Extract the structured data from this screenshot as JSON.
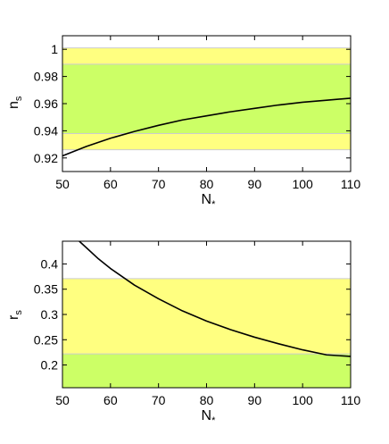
{
  "colors": {
    "outer_band": "#ffff80",
    "inner_band": "#ccff66",
    "curve": "#000000"
  },
  "chart_data": [
    {
      "type": "line",
      "xlabel": "N",
      "xlabel_sub": "*",
      "ylabel": "n",
      "ylabel_sub": "s",
      "xlim": [
        50,
        110
      ],
      "ylim": [
        0.91,
        1.01
      ],
      "xticks": [
        50,
        60,
        70,
        80,
        90,
        100,
        110
      ],
      "yticks": [
        0.92,
        0.94,
        0.96,
        0.98,
        1
      ],
      "ytick_labels": [
        "0.92",
        "0.94",
        "0.96",
        "0.98",
        "1"
      ],
      "bands": [
        {
          "name": "outer",
          "range": [
            0.926,
            1.001
          ]
        },
        {
          "name": "inner",
          "range": [
            0.938,
            0.989
          ]
        }
      ],
      "series": [
        {
          "x": [
            50,
            55,
            60,
            65,
            70,
            75,
            80,
            85,
            90,
            95,
            100,
            105,
            110
          ],
          "y": [
            0.9215,
            0.9285,
            0.9345,
            0.9395,
            0.944,
            0.948,
            0.951,
            0.954,
            0.9565,
            0.959,
            0.961,
            0.9625,
            0.964
          ]
        }
      ]
    },
    {
      "type": "line",
      "xlabel": "N",
      "xlabel_sub": "*",
      "ylabel": "r",
      "ylabel_sub": "s",
      "xlim": [
        50,
        110
      ],
      "ylim": [
        0.155,
        0.445
      ],
      "xticks": [
        50,
        60,
        70,
        80,
        90,
        100,
        110
      ],
      "yticks": [
        0.2,
        0.25,
        0.3,
        0.35,
        0.4
      ],
      "ytick_labels": [
        "0.2",
        "0.25",
        "0.3",
        "0.35",
        "0.4"
      ],
      "bands": [
        {
          "name": "outer",
          "range": [
            0.155,
            0.371
          ]
        },
        {
          "name": "inner",
          "range": [
            0.155,
            0.222
          ]
        }
      ],
      "series": [
        {
          "x": [
            53.5,
            55,
            57.5,
            60,
            65,
            70,
            75,
            80,
            85,
            90,
            95,
            100,
            105,
            110
          ],
          "y": [
            0.445,
            0.432,
            0.41,
            0.391,
            0.358,
            0.331,
            0.307,
            0.287,
            0.27,
            0.255,
            0.242,
            0.23,
            0.22,
            0.217
          ]
        }
      ]
    }
  ]
}
